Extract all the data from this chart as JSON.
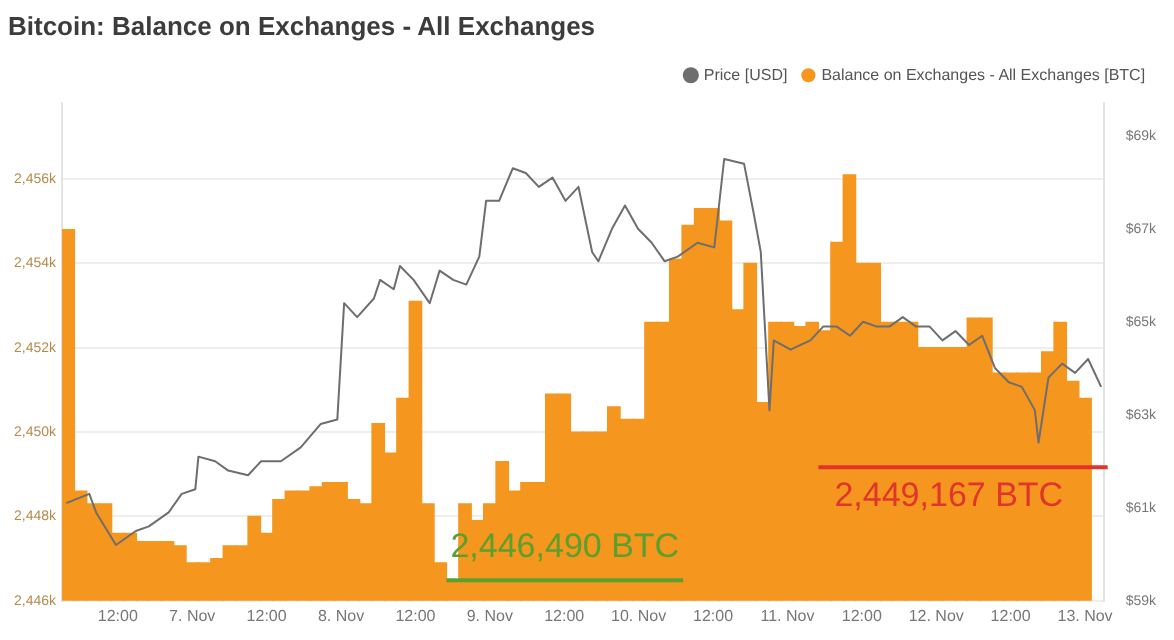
{
  "chart_data": {
    "type": "bar",
    "title": "Bitcoin: Balance on Exchanges - All Exchanges",
    "series": [
      {
        "name": "Balance on Exchanges - All Exchanges [BTC]",
        "color": "#f5961e",
        "x": [
          "--11-06T04:00",
          "--11-06T06:00",
          "--11-06T08:00",
          "--11-06T10:00",
          "--11-06T12:00",
          "--11-06T14:00",
          "--11-06T16:00",
          "--11-06T18:00",
          "--11-06T20:00",
          "--11-06T22:00",
          "--11-07T00:00",
          "--11-07T02:00",
          "--11-07T04:00",
          "--11-07T06:00",
          "--11-07T08:00",
          "--11-07T10:00",
          "--11-07T12:00",
          "--11-07T14:00",
          "--11-07T16:00",
          "--11-07T18:00",
          "--11-07T20:00",
          "--11-07T22:00",
          "--11-08T00:00",
          "--11-08T02:00",
          "--11-08T04:00",
          "--11-08T06:00",
          "--11-08T08:00",
          "--11-08T10:00",
          "--11-08T12:00",
          "--11-08T14:00",
          "--11-08T16:00",
          "--11-08T18:00",
          "--11-08T20:00",
          "--11-08T22:00",
          "--11-09T00:00",
          "--11-09T02:00",
          "--11-09T04:00",
          "--11-09T06:00",
          "--11-09T08:00",
          "--11-09T10:00",
          "--11-09T12:00",
          "--11-09T14:00",
          "--11-09T16:00",
          "--11-09T18:00",
          "--11-09T20:00",
          "--11-09T22:00",
          "--11-10T00:00",
          "--11-10T02:00",
          "--11-10T04:00",
          "--11-10T06:00",
          "--11-10T08:00",
          "--11-10T10:00",
          "--11-10T12:00",
          "--11-10T14:00",
          "--11-10T16:00",
          "--11-10T18:00",
          "--11-10T20:00",
          "--11-10T22:00",
          "--11-11T00:00",
          "--11-11T02:00",
          "--11-11T04:00",
          "--11-11T06:00",
          "--11-11T08:00",
          "--11-11T10:00",
          "--11-11T12:00",
          "--11-11T14:00",
          "--11-11T16:00",
          "--11-11T18:00",
          "--11-11T20:00",
          "--11-11T22:00",
          "--11-12T00:00",
          "--11-12T02:00",
          "--11-12T04:00",
          "--11-12T06:00",
          "--11-12T08:00",
          "--11-12T10:00",
          "--11-12T12:00",
          "--11-12T14:00",
          "--11-12T16:00",
          "--11-12T18:00",
          "--11-12T20:00",
          "--11-12T22:00",
          "--11-13T00:00"
        ],
        "values": [
          2454800,
          2448600,
          2448300,
          2448300,
          2447600,
          2447600,
          2447400,
          2447400,
          2447400,
          2447300,
          2446900,
          2446900,
          2447000,
          2447300,
          2447300,
          2448000,
          2447600,
          2448400,
          2448600,
          2448600,
          2448700,
          2448800,
          2448800,
          2448400,
          2448300,
          2450200,
          2449500,
          2450800,
          2453100,
          2448300,
          2446900,
          2446490,
          2448300,
          2447900,
          2448300,
          2449300,
          2448600,
          2448800,
          2448800,
          2450900,
          2450900,
          2450000,
          2450000,
          2450000,
          2450600,
          2450300,
          2450300,
          2452600,
          2452600,
          2454100,
          2454900,
          2455300,
          2455300,
          2455000,
          2452900,
          2454000,
          2450700,
          2452600,
          2452600,
          2452500,
          2452600,
          2452400,
          2454500,
          2456100,
          2454000,
          2454000,
          2452600,
          2452600,
          2452600,
          2452000,
          2452000,
          2452000,
          2452000,
          2452700,
          2452700,
          2451400,
          2451400,
          2451400,
          2451400,
          2451900,
          2452600,
          2451200,
          2450800
        ]
      },
      {
        "name": "Price [USD]",
        "type": "line",
        "axis": "y2",
        "color": "#6e6e6e",
        "x": [
          "--11-06T03:42",
          "--11-06T07:24",
          "--11-06T08:30",
          "--11-06T11:42",
          "--11-06T14:54",
          "--11-06T17:00",
          "--11-06T20:12",
          "--11-06T22:18",
          "--11-07T00:30",
          "--11-07T01:00",
          "--11-07T03:42",
          "--11-07T05:48",
          "--11-07T09:00",
          "--11-07T11:06",
          "--11-07T14:18",
          "--11-07T17:30",
          "--11-07T20:42",
          "--11-07T23:24",
          "--11-08T00:30",
          "--11-08T02:36",
          "--11-08T05:18",
          "--11-08T06:18",
          "--11-08T08:30",
          "--11-08T09:30",
          "--11-08T11:42",
          "--11-08T14:18",
          "--11-08T15:54",
          "--11-08T18:06",
          "--11-08T20:12",
          "--11-08T22:18",
          "--11-08T23:24",
          "--11-09T01:30",
          "--11-09T03:42",
          "--11-09T05:48",
          "--11-09T07:54",
          "--11-09T10:06",
          "--11-09T12:12",
          "--11-09T14:18",
          "--11-09T15:24",
          "--11-09T16:30",
          "--11-09T17:30",
          "--11-09T19:42",
          "--11-09T21:48",
          "--11-09T23:54",
          "--11-10T02:06",
          "--11-10T04:12",
          "--11-10T06:18",
          "--11-10T09:30",
          "--11-10T12:12",
          "--11-10T13:48",
          "--11-10T17:00",
          "--11-10T18:36",
          "--11-10T19:42",
          "--11-10T21:06",
          "--11-10T21:48",
          "--11-11T00:30",
          "--11-11T03:42",
          "--11-11T05:48",
          "--11-11T07:54",
          "--11-11T10:06",
          "--11-11T12:12",
          "--11-11T14:18",
          "--11-11T16:30",
          "--11-11T18:36",
          "--11-11T20:42",
          "--11-11T22:54",
          "--11-12T01:00",
          "--11-12T03:06",
          "--11-12T05:18",
          "--11-12T07:24",
          "--11-12T09:30",
          "--11-12T11:42",
          "--11-12T13:48",
          "--11-12T15:54",
          "--11-12T16:30",
          "--11-12T18:06",
          "--11-12T20:18",
          "--11-12T22:24",
          "--11-13T00:30",
          "--11-13T02:36"
        ],
        "values": [
          61100,
          61300,
          60900,
          60200,
          60500,
          60600,
          60900,
          61300,
          61400,
          62100,
          62000,
          61800,
          61700,
          62000,
          62000,
          62300,
          62800,
          62900,
          65400,
          65100,
          65500,
          65900,
          65700,
          66200,
          65900,
          65400,
          66100,
          65900,
          65800,
          66400,
          67600,
          67600,
          68300,
          68200,
          67900,
          68100,
          67600,
          67900,
          67200,
          66500,
          66300,
          67000,
          67500,
          67000,
          66700,
          66300,
          66400,
          66700,
          66600,
          68500,
          68400,
          67300,
          66500,
          63100,
          64600,
          64400,
          64600,
          64900,
          64900,
          64700,
          65000,
          64900,
          64900,
          65100,
          64900,
          64900,
          64600,
          64800,
          64500,
          64700,
          64000,
          63700,
          63600,
          63100,
          62400,
          63800,
          64100,
          63900,
          64200,
          63600
        ]
      }
    ],
    "xlim": [
      "--11-06T03:00",
      "--11-13T03:00"
    ],
    "xticks": [
      {
        "value": "--11-06T12:00",
        "label": "12:00"
      },
      {
        "value": "--11-07",
        "label": "7. Nov"
      },
      {
        "value": "--11-07T12:00",
        "label": "12:00"
      },
      {
        "value": "--11-08",
        "label": "8. Nov"
      },
      {
        "value": "--11-08T12:00",
        "label": "12:00"
      },
      {
        "value": "--11-09",
        "label": "9. Nov"
      },
      {
        "value": "--11-09T12:00",
        "label": "12:00"
      },
      {
        "value": "--11-10",
        "label": "10. Nov"
      },
      {
        "value": "--11-10T12:00",
        "label": "12:00"
      },
      {
        "value": "--11-11",
        "label": "11. Nov"
      },
      {
        "value": "--11-11T12:00",
        "label": "12:00"
      },
      {
        "value": "--11-12",
        "label": "12. Nov"
      },
      {
        "value": "--11-12T12:00",
        "label": "12:00"
      },
      {
        "value": "--11-13",
        "label": "13. Nov"
      }
    ],
    "ylim": [
      2446000,
      2457800
    ],
    "yticks": [
      {
        "value": 2446000,
        "label": "2,446k"
      },
      {
        "value": 2448000,
        "label": "2,448k"
      },
      {
        "value": 2450000,
        "label": "2,450k"
      },
      {
        "value": 2452000,
        "label": "2,452k"
      },
      {
        "value": 2454000,
        "label": "2,454k"
      },
      {
        "value": 2456000,
        "label": "2,456k"
      }
    ],
    "y2lim": [
      59000,
      69700
    ],
    "y2ticks": [
      {
        "value": 59000,
        "label": "$59k"
      },
      {
        "value": 61000,
        "label": "$61k"
      },
      {
        "value": 63000,
        "label": "$63k"
      },
      {
        "value": 65000,
        "label": "$65k"
      },
      {
        "value": 67000,
        "label": "$67k"
      },
      {
        "value": 69000,
        "label": "$69k"
      }
    ],
    "annotations": [
      {
        "text": "2,446,490 BTC",
        "x": "--11-08T17:00",
        "y": 2446490
      },
      {
        "text": "2,449,167 BTC",
        "x": "--11-11T05:00",
        "y": 2449167
      }
    ],
    "grid": "y",
    "legend": "top right",
    "marker": "none",
    "line_style": "solid"
  }
}
